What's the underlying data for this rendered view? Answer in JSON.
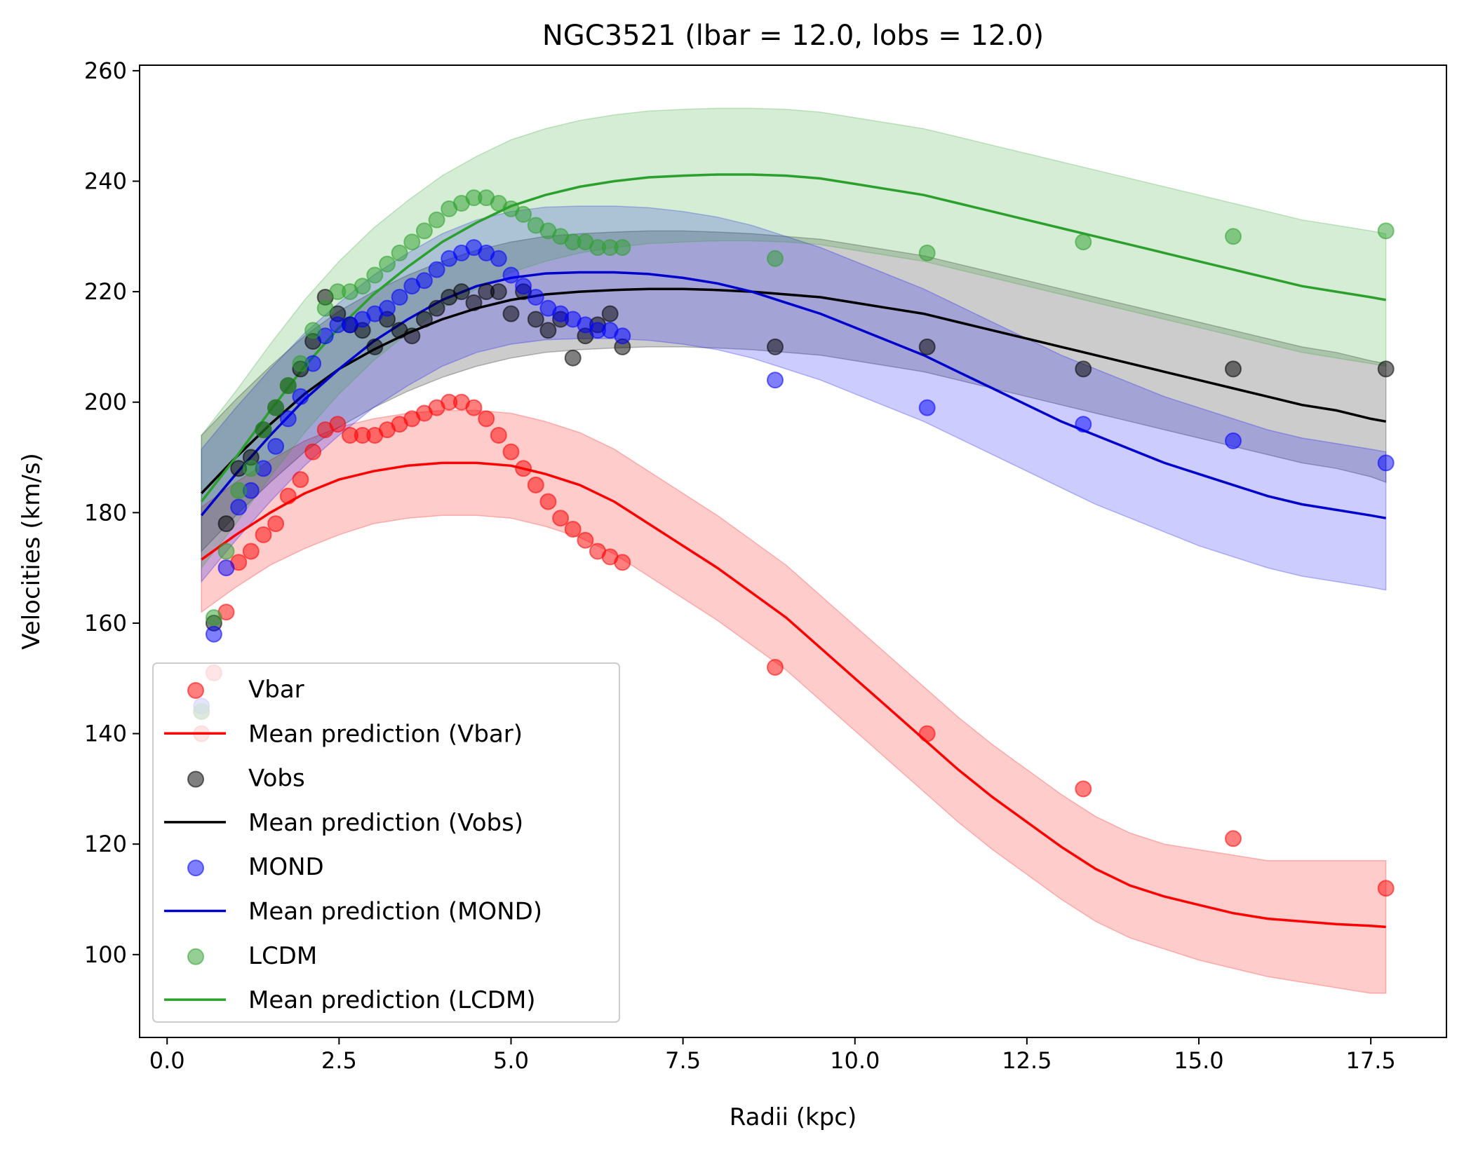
{
  "chart_data": {
    "type": "scatter",
    "title": "NGC3521 (lbar = 12.0, lobs = 12.0)",
    "xlabel": "Radii (kpc)",
    "ylabel": "Velocities (km/s)",
    "xlim": [
      -0.4,
      18.6
    ],
    "ylim": [
      85,
      261
    ],
    "xticks": [
      0.0,
      2.5,
      5.0,
      7.5,
      10.0,
      12.5,
      15.0,
      17.5
    ],
    "xtick_labels": [
      "0.0",
      "2.5",
      "5.0",
      "7.5",
      "10.0",
      "12.5",
      "15.0",
      "17.5"
    ],
    "yticks": [
      100,
      120,
      140,
      160,
      180,
      200,
      220,
      240,
      260
    ],
    "ytick_labels": [
      "100",
      "120",
      "140",
      "160",
      "180",
      "200",
      "220",
      "240",
      "260"
    ],
    "grid": false,
    "legend_position": "lower-left",
    "x": [
      0.5,
      0.68,
      0.86,
      1.04,
      1.22,
      1.4,
      1.58,
      1.76,
      1.94,
      2.12,
      2.3,
      2.48,
      2.66,
      2.84,
      3.02,
      3.2,
      3.38,
      3.56,
      3.74,
      3.92,
      4.1,
      4.28,
      4.46,
      4.64,
      4.82,
      5.0,
      5.18,
      5.36,
      5.54,
      5.72,
      5.9,
      6.08,
      6.26,
      6.44,
      6.62,
      8.84,
      11.05,
      13.32,
      15.5,
      17.72
    ],
    "series": [
      {
        "name": "Vbar",
        "kind": "scatter",
        "color": "#ff0000",
        "values": [
          140,
          151,
          162,
          171,
          173,
          176,
          178,
          183,
          186,
          191,
          195,
          196,
          194,
          194,
          194,
          195,
          196,
          197,
          198,
          199,
          200,
          200,
          199,
          197,
          194,
          191,
          188,
          185,
          182,
          179,
          177,
          175,
          173,
          172,
          171,
          152,
          140,
          130,
          121,
          112
        ]
      },
      {
        "name": "Mean prediction (Vbar)",
        "kind": "line",
        "color": "#ff0000",
        "fill": "#ff0000",
        "x": [
          0.5,
          1.0,
          1.5,
          2.0,
          2.5,
          3.0,
          3.5,
          4.0,
          4.5,
          5.0,
          5.5,
          6.0,
          6.5,
          7.0,
          7.5,
          8.0,
          8.5,
          9.0,
          9.5,
          10.0,
          10.5,
          11.0,
          11.5,
          12.0,
          12.5,
          13.0,
          13.5,
          14.0,
          14.5,
          15.0,
          15.5,
          16.0,
          16.5,
          17.0,
          17.5,
          17.72
        ],
        "values": [
          171.5,
          176,
          180,
          183.5,
          186,
          187.5,
          188.5,
          189,
          189,
          188.5,
          187,
          185,
          182,
          178,
          174,
          170,
          165.5,
          161,
          155.5,
          150,
          144.5,
          139,
          133.5,
          128.5,
          124,
          119.5,
          115.5,
          112.5,
          110.5,
          109,
          107.5,
          106.5,
          106,
          105.5,
          105.2,
          105
        ],
        "lower": [
          162,
          166.5,
          170.5,
          173.5,
          176,
          178,
          179,
          179.5,
          179.5,
          179,
          177.5,
          175.5,
          172.5,
          168.5,
          164.5,
          160.5,
          156,
          151.5,
          146,
          140.5,
          135,
          129.5,
          124,
          119,
          114.5,
          110,
          106,
          103,
          101,
          99,
          97.5,
          96,
          95,
          94,
          93,
          93
        ],
        "upper": [
          181,
          185.5,
          189.5,
          193,
          195.5,
          197,
          198,
          198.5,
          198.5,
          198,
          196.5,
          194.5,
          191.5,
          187.5,
          183.5,
          179.5,
          175,
          170.5,
          165,
          159.5,
          154,
          148.5,
          143,
          138,
          133.5,
          129,
          125,
          122,
          120,
          119,
          118,
          117,
          117,
          117,
          117,
          117
        ]
      },
      {
        "name": "Vobs",
        "kind": "scatter",
        "color": "#000000",
        "values": [
          144,
          160,
          178,
          188,
          190,
          195,
          199,
          203,
          206,
          211,
          219,
          216,
          214,
          213,
          210,
          215,
          213,
          212,
          215,
          217,
          219,
          220,
          218,
          220,
          220,
          216,
          220,
          215,
          213,
          215,
          208,
          212,
          214,
          216,
          210,
          210,
          210,
          206,
          206,
          206
        ]
      },
      {
        "name": "Mean prediction (Vobs)",
        "kind": "line",
        "color": "#000000",
        "fill": "#000000",
        "x": [
          0.5,
          1.0,
          1.5,
          2.0,
          2.5,
          3.0,
          3.5,
          4.0,
          4.5,
          5.0,
          5.5,
          6.0,
          6.5,
          7.0,
          7.5,
          8.0,
          8.5,
          9.0,
          9.5,
          10.0,
          10.5,
          11.0,
          11.5,
          12.0,
          12.5,
          13.0,
          13.5,
          14.0,
          14.5,
          15.0,
          15.5,
          16.0,
          16.5,
          17.0,
          17.5,
          17.72
        ],
        "values": [
          183.5,
          190,
          196,
          201.5,
          206,
          209.5,
          212.5,
          215,
          217,
          218.5,
          219.5,
          220,
          220.3,
          220.5,
          220.5,
          220.3,
          220,
          219.5,
          219,
          218,
          217,
          216,
          214.5,
          213,
          211.5,
          210,
          208.5,
          207,
          205.5,
          204,
          202.5,
          201,
          199.5,
          198.5,
          197,
          196.5
        ],
        "lower": [
          173,
          179.5,
          185.5,
          191,
          195.5,
          199,
          202,
          204.5,
          206.5,
          208,
          209,
          209.5,
          209.8,
          210,
          210,
          209.8,
          209.5,
          209,
          208.5,
          207.5,
          206.5,
          205.5,
          204,
          202.5,
          201,
          199.5,
          198,
          196.5,
          195,
          193.5,
          192,
          190.5,
          189,
          188,
          186.5,
          185.5
        ],
        "upper": [
          194,
          200.5,
          206.5,
          212,
          216.5,
          220,
          223,
          225.5,
          227.5,
          229,
          230,
          230.5,
          230.8,
          231,
          231,
          230.8,
          230.5,
          230,
          229.5,
          228.5,
          227.5,
          226.5,
          225,
          223.5,
          222,
          220.5,
          219,
          217.5,
          216,
          214.5,
          213,
          211.5,
          210,
          209,
          207.5,
          207
        ]
      },
      {
        "name": "MOND",
        "kind": "scatter",
        "color": "#0000ff",
        "values": [
          145,
          158,
          170,
          181,
          184,
          188,
          192,
          197,
          201,
          207,
          212,
          214,
          214,
          215,
          216,
          217,
          219,
          221,
          222,
          224,
          226,
          227,
          228,
          227,
          226,
          223,
          221,
          219,
          217,
          216,
          215,
          214,
          213,
          213,
          212,
          204,
          199,
          196,
          193,
          189
        ]
      },
      {
        "name": "Mean prediction (MOND)",
        "kind": "line",
        "color": "#0000cd",
        "fill": "#0000ff",
        "x": [
          0.5,
          1.0,
          1.5,
          2.0,
          2.5,
          3.0,
          3.5,
          4.0,
          4.5,
          5.0,
          5.5,
          6.0,
          6.5,
          7.0,
          7.5,
          8.0,
          8.5,
          9.0,
          9.5,
          10.0,
          10.5,
          11.0,
          11.5,
          12.0,
          12.5,
          13.0,
          13.5,
          14.0,
          14.5,
          15.0,
          15.5,
          16.0,
          16.5,
          17.0,
          17.5,
          17.72
        ],
        "values": [
          179.5,
          187,
          194,
          200.5,
          206,
          211,
          215,
          218.5,
          221,
          222.5,
          223.3,
          223.5,
          223.5,
          223.2,
          222.5,
          221.5,
          220,
          218,
          216,
          213.5,
          211,
          208.5,
          205.5,
          202.5,
          199.5,
          196.5,
          194,
          191.5,
          189,
          187,
          185,
          183,
          181.5,
          180.5,
          179.5,
          179
        ],
        "lower": [
          167.5,
          175,
          182,
          188.5,
          194,
          199,
          203,
          206.5,
          209,
          210.5,
          211.3,
          211.5,
          211.5,
          211.2,
          210.5,
          209.5,
          208,
          206,
          204,
          201.5,
          199,
          196.5,
          193.5,
          190.5,
          187.5,
          184.5,
          181.5,
          179,
          176.5,
          174,
          172,
          170,
          168.5,
          167.5,
          166.5,
          166
        ],
        "upper": [
          191.5,
          199,
          206,
          212.5,
          218,
          223,
          227,
          230.5,
          233,
          234.5,
          235.3,
          235.5,
          235.5,
          235.2,
          234.5,
          233.5,
          232,
          230,
          228,
          225.5,
          223,
          220.5,
          217.5,
          214.5,
          211.5,
          208.5,
          206,
          203.5,
          201,
          199,
          197,
          195,
          193.5,
          192.5,
          191.5,
          191
        ]
      },
      {
        "name": "LCDM",
        "kind": "scatter",
        "color": "#2ca02c",
        "values": [
          144,
          161,
          173,
          184,
          188,
          195,
          199,
          203,
          207,
          213,
          217,
          220,
          220,
          221,
          223,
          225,
          227,
          229,
          231,
          233,
          235,
          236,
          237,
          237,
          236,
          235,
          234,
          232,
          231,
          230,
          229,
          229,
          228,
          228,
          228,
          226,
          227,
          229,
          230,
          231
        ]
      },
      {
        "name": "Mean prediction (LCDM)",
        "kind": "line",
        "color": "#2ca02c",
        "fill": "#2ca02c",
        "x": [
          0.5,
          1.0,
          1.5,
          2.0,
          2.5,
          3.0,
          3.5,
          4.0,
          4.5,
          5.0,
          5.5,
          6.0,
          6.5,
          7.0,
          7.5,
          8.0,
          8.5,
          9.0,
          9.5,
          10.0,
          10.5,
          11.0,
          11.5,
          12.0,
          12.5,
          13.0,
          13.5,
          14.0,
          14.5,
          15.0,
          15.5,
          16.0,
          16.5,
          17.0,
          17.5,
          17.72
        ],
        "values": [
          182,
          190,
          198.5,
          206.5,
          213.5,
          219.5,
          224.5,
          229,
          232.5,
          235.5,
          237.5,
          239,
          240,
          240.7,
          241,
          241.2,
          241.2,
          241,
          240.5,
          239.5,
          238.5,
          237.5,
          236,
          234.5,
          233,
          231.5,
          230,
          228.5,
          227,
          225.5,
          224,
          222.5,
          221,
          220,
          219,
          218.5
        ],
        "lower": [
          170,
          178,
          186.5,
          194.5,
          201.5,
          207.5,
          212.5,
          217,
          220.5,
          223.5,
          225.5,
          227,
          228,
          228.7,
          229,
          229.2,
          229.2,
          229,
          228.5,
          227.5,
          226.5,
          225.5,
          224,
          222.5,
          221,
          219.5,
          218,
          216.5,
          215,
          213.5,
          212,
          210.5,
          209,
          208,
          207,
          206.5
        ],
        "upper": [
          194,
          202,
          210.5,
          218.5,
          225.5,
          231.5,
          236.5,
          241,
          244.5,
          247.5,
          249.5,
          251,
          252,
          252.7,
          253,
          253.2,
          253.2,
          253,
          252.5,
          251.5,
          250.5,
          249.5,
          248,
          246.5,
          245,
          243.5,
          242,
          240.5,
          239,
          237.5,
          236,
          234.5,
          233,
          232,
          231,
          230.5
        ]
      }
    ]
  },
  "legend": [
    {
      "label": "Vbar",
      "kind": "marker",
      "color": "#ff0000"
    },
    {
      "label": "Mean prediction (Vbar)",
      "kind": "line",
      "color": "#ff0000"
    },
    {
      "label": "Vobs",
      "kind": "marker",
      "color": "#000000"
    },
    {
      "label": "Mean prediction (Vobs)",
      "kind": "line",
      "color": "#000000"
    },
    {
      "label": "MOND",
      "kind": "marker",
      "color": "#0000ff"
    },
    {
      "label": "Mean prediction (MOND)",
      "kind": "line",
      "color": "#0000cd"
    },
    {
      "label": "LCDM",
      "kind": "marker",
      "color": "#2ca02c"
    },
    {
      "label": "Mean prediction (LCDM)",
      "kind": "line",
      "color": "#2ca02c"
    }
  ]
}
